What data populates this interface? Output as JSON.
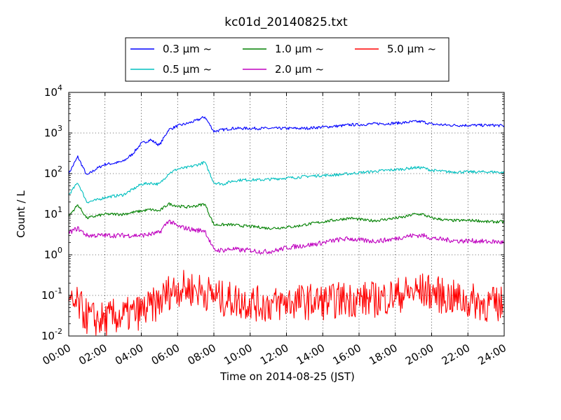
{
  "chart_data": {
    "type": "line",
    "title": "kc01d_20140825.txt",
    "xlabel": "Time on 2014-08-25 (JST)",
    "ylabel": "Count / L",
    "y_scale": "log",
    "ylim": [
      0.01,
      10000
    ],
    "xlim": [
      "00:00",
      "24:00"
    ],
    "x_ticks": [
      "00:00",
      "02:00",
      "04:00",
      "06:00",
      "08:00",
      "10:00",
      "12:00",
      "14:00",
      "16:00",
      "18:00",
      "20:00",
      "22:00",
      "24:00"
    ],
    "y_ticks": [
      {
        "base": "10",
        "exp": "-2"
      },
      {
        "base": "10",
        "exp": "-1"
      },
      {
        "base": "10",
        "exp": "0"
      },
      {
        "base": "10",
        "exp": "1"
      },
      {
        "base": "10",
        "exp": "2"
      },
      {
        "base": "10",
        "exp": "3"
      },
      {
        "base": "10",
        "exp": "4"
      }
    ],
    "grid": true,
    "legend_position": "top-center",
    "x": [
      "00:00",
      "00:30",
      "01:00",
      "01:30",
      "02:00",
      "02:30",
      "03:00",
      "03:30",
      "04:00",
      "04:30",
      "05:00",
      "05:30",
      "06:00",
      "06:30",
      "07:00",
      "07:30",
      "08:00",
      "08:30",
      "09:00",
      "09:30",
      "10:00",
      "10:30",
      "11:00",
      "11:30",
      "12:00",
      "12:30",
      "13:00",
      "13:30",
      "14:00",
      "14:30",
      "15:00",
      "15:30",
      "16:00",
      "16:30",
      "17:00",
      "17:30",
      "18:00",
      "18:30",
      "19:00",
      "19:30",
      "20:00",
      "20:30",
      "21:00",
      "21:30",
      "22:00",
      "22:30",
      "23:00",
      "23:30",
      "24:00"
    ],
    "series": [
      {
        "name": "0.3 μm ~",
        "color": "#0000ff",
        "values": [
          100,
          260,
          90,
          130,
          170,
          180,
          200,
          300,
          550,
          680,
          500,
          1200,
          1500,
          1700,
          2000,
          2500,
          1100,
          1200,
          1300,
          1300,
          1300,
          1300,
          1300,
          1300,
          1300,
          1300,
          1300,
          1350,
          1400,
          1450,
          1500,
          1600,
          1600,
          1650,
          1700,
          1700,
          1750,
          1800,
          1900,
          1900,
          1650,
          1600,
          1550,
          1550,
          1550,
          1550,
          1550,
          1550,
          1500
        ]
      },
      {
        "name": "0.5 μm ~",
        "color": "#00bfbf",
        "values": [
          30,
          60,
          20,
          22,
          26,
          28,
          30,
          40,
          55,
          58,
          55,
          100,
          130,
          140,
          160,
          190,
          60,
          55,
          65,
          70,
          70,
          70,
          72,
          75,
          78,
          80,
          85,
          88,
          90,
          92,
          95,
          100,
          105,
          110,
          115,
          120,
          125,
          130,
          140,
          140,
          120,
          115,
          110,
          110,
          110,
          110,
          110,
          110,
          105
        ]
      },
      {
        "name": "1.0 μm ~",
        "color": "#008000",
        "values": [
          9,
          17,
          8,
          9,
          10,
          10,
          10,
          11,
          12,
          13,
          12,
          18,
          16,
          15,
          16,
          18,
          5.5,
          5.5,
          5.5,
          5.2,
          5,
          4.8,
          4.5,
          4.6,
          4.8,
          5,
          5.5,
          6,
          6.5,
          7,
          7.5,
          8,
          7.5,
          7,
          7,
          7.5,
          8,
          8.5,
          10,
          10,
          8,
          7.5,
          7,
          7,
          7,
          7,
          6.5,
          6.5,
          6.5
        ]
      },
      {
        "name": "2.0 μm ~",
        "color": "#bf00bf",
        "values": [
          3.5,
          4.5,
          3,
          3,
          3,
          3,
          3,
          3,
          3,
          3.2,
          3.5,
          7,
          5,
          4.5,
          4,
          4,
          1.3,
          1.3,
          1.4,
          1.3,
          1.3,
          1.2,
          1.2,
          1.3,
          1.5,
          1.6,
          1.7,
          1.8,
          2,
          2.2,
          2.4,
          2.5,
          2.3,
          2.2,
          2.2,
          2.3,
          2.5,
          2.8,
          3,
          3,
          2.6,
          2.4,
          2.3,
          2.2,
          2.2,
          2.2,
          2.1,
          2.1,
          2
        ]
      },
      {
        "name": "5.0 μm ~",
        "color": "#ff0000",
        "values": [
          0.05,
          0.06,
          0.03,
          0.025,
          0.025,
          0.03,
          0.03,
          0.035,
          0.04,
          0.05,
          0.07,
          0.12,
          0.15,
          0.15,
          0.14,
          0.12,
          0.1,
          0.08,
          0.08,
          0.07,
          0.07,
          0.06,
          0.06,
          0.06,
          0.07,
          0.07,
          0.07,
          0.07,
          0.07,
          0.07,
          0.08,
          0.08,
          0.08,
          0.08,
          0.08,
          0.09,
          0.1,
          0.11,
          0.12,
          0.13,
          0.12,
          0.1,
          0.09,
          0.08,
          0.07,
          0.07,
          0.06,
          0.06,
          0.06
        ]
      }
    ]
  }
}
